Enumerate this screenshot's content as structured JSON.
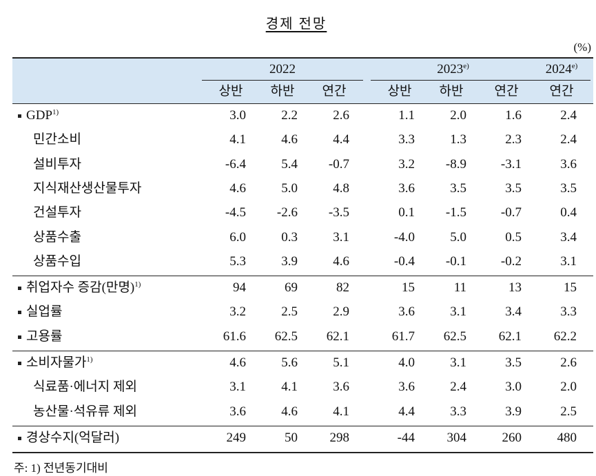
{
  "title": "경제 전망",
  "unit": "(%)",
  "header": {
    "years": [
      {
        "label": "2022",
        "columns": [
          "상반",
          "하반",
          "연간"
        ]
      },
      {
        "label": "2023",
        "sup": "e)",
        "columns": [
          "상반",
          "하반",
          "연간"
        ]
      },
      {
        "label": "2024",
        "sup": "e)",
        "columns": [
          "연간"
        ]
      }
    ]
  },
  "table": {
    "groups": [
      {
        "rows": [
          {
            "label": "GDP",
            "sup": "1)",
            "bullet": true,
            "values": [
              "3.0",
              "2.2",
              "2.6",
              "1.1",
              "2.0",
              "1.6",
              "2.4"
            ]
          },
          {
            "label": "민간소비",
            "values": [
              "4.1",
              "4.6",
              "4.4",
              "3.3",
              "1.3",
              "2.3",
              "2.4"
            ]
          },
          {
            "label": "설비투자",
            "values": [
              "-6.4",
              "5.4",
              "-0.7",
              "3.2",
              "-8.9",
              "-3.1",
              "3.6"
            ]
          },
          {
            "label": "지식재산생산물투자",
            "values": [
              "4.6",
              "5.0",
              "4.8",
              "3.6",
              "3.5",
              "3.5",
              "3.5"
            ]
          },
          {
            "label": "건설투자",
            "values": [
              "-4.5",
              "-2.6",
              "-3.5",
              "0.1",
              "-1.5",
              "-0.7",
              "0.4"
            ]
          },
          {
            "label": "상품수출",
            "values": [
              "6.0",
              "0.3",
              "3.1",
              "-4.0",
              "5.0",
              "0.5",
              "3.4"
            ]
          },
          {
            "label": "상품수입",
            "values": [
              "5.3",
              "3.9",
              "4.6",
              "-0.4",
              "-0.1",
              "-0.2",
              "3.1"
            ]
          }
        ]
      },
      {
        "rows": [
          {
            "label": "취업자수 증감(만명)",
            "sup": "1)",
            "bullet": true,
            "values": [
              "94",
              "69",
              "82",
              "15",
              "11",
              "13",
              "15"
            ]
          },
          {
            "label": "실업률",
            "bullet": true,
            "values": [
              "3.2",
              "2.5",
              "2.9",
              "3.6",
              "3.1",
              "3.4",
              "3.3"
            ]
          },
          {
            "label": "고용률",
            "bullet": true,
            "values": [
              "61.6",
              "62.5",
              "62.1",
              "61.7",
              "62.5",
              "62.1",
              "62.2"
            ]
          }
        ]
      },
      {
        "rows": [
          {
            "label": "소비자물가",
            "sup": "1)",
            "bullet": true,
            "values": [
              "4.6",
              "5.6",
              "5.1",
              "4.0",
              "3.1",
              "3.5",
              "2.6"
            ]
          },
          {
            "label": "식료품·에너지 제외",
            "values": [
              "3.1",
              "4.1",
              "3.6",
              "3.6",
              "2.4",
              "3.0",
              "2.0"
            ]
          },
          {
            "label": "농산물·석유류 제외",
            "values": [
              "3.6",
              "4.6",
              "4.1",
              "4.4",
              "3.3",
              "3.9",
              "2.5"
            ]
          }
        ]
      },
      {
        "rows": [
          {
            "label": "경상수지(억달러)",
            "bullet": true,
            "values": [
              "249",
              "50",
              "298",
              "-44",
              "304",
              "260",
              "480"
            ]
          }
        ]
      }
    ]
  },
  "footnote": "주: 1) 전년동기대비"
}
